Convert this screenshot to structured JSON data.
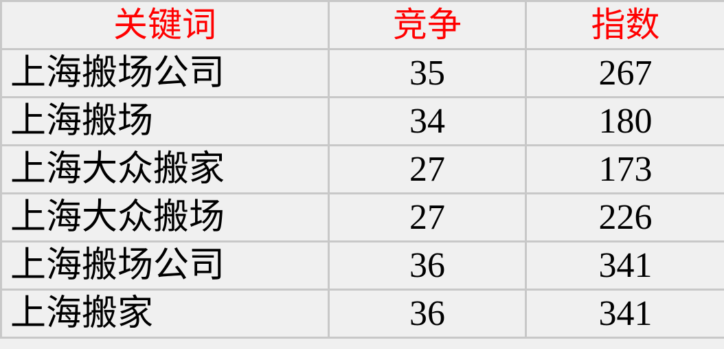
{
  "colors": {
    "header_text": "#ff0000",
    "border": "#c8c8c8",
    "background": "#f0f0f0"
  },
  "headers": [
    "关键词",
    "竞争",
    "指数"
  ],
  "rows": [
    {
      "keyword": "上海搬场公司",
      "competition": "35",
      "index": "267"
    },
    {
      "keyword": "上海搬场",
      "competition": "34",
      "index": "180"
    },
    {
      "keyword": "上海大众搬家",
      "competition": "27",
      "index": "173"
    },
    {
      "keyword": "上海大众搬场",
      "competition": "27",
      "index": "226"
    },
    {
      "keyword": "上海搬场公司",
      "competition": "36",
      "index": "341"
    },
    {
      "keyword": "上海搬家",
      "competition": "36",
      "index": "341"
    }
  ]
}
